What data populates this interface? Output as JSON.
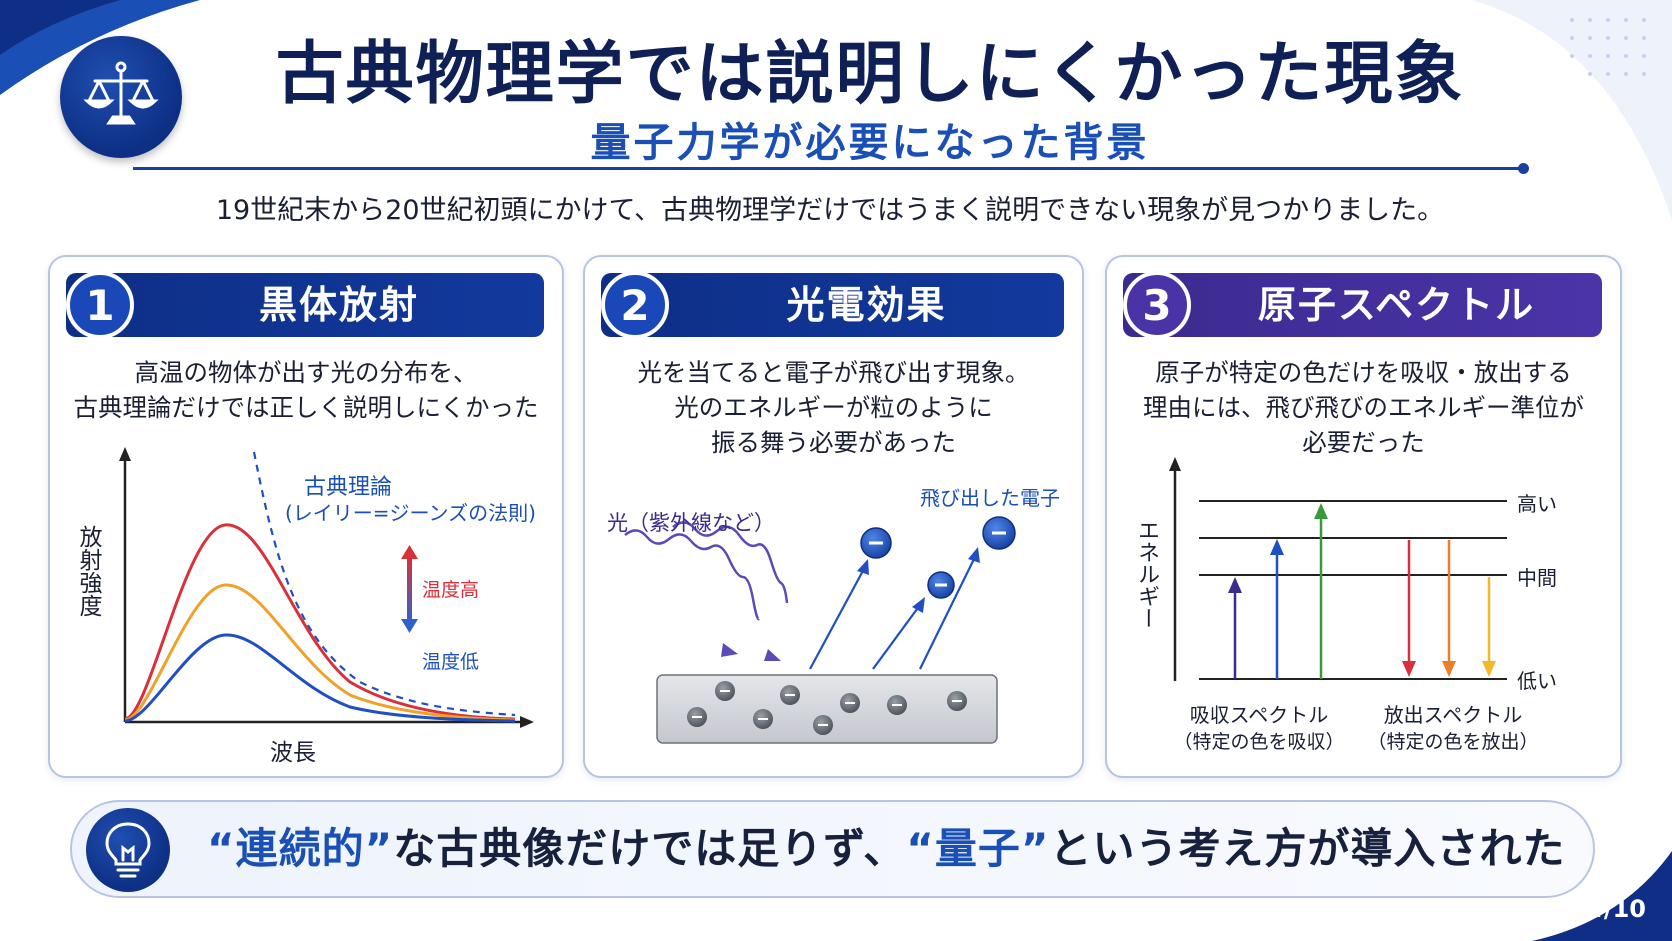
{
  "slide": {
    "title": "古典物理学では説明しにくかった現象",
    "subtitle": "量子力学が必要になった背景",
    "lead": "19世紀末から20世紀初頭にかけて、古典物理学だけではうまく説明できない現象が見つかりました。",
    "page_number": "4/10"
  },
  "icons": {
    "logo": "balance-scale-icon",
    "conclusion": "lightbulb-icon"
  },
  "colors": {
    "navy": "#0f2057",
    "accent_blue": "#1a4fb5",
    "banner_blue": "#12399e",
    "banner_purple": "#4b34a8",
    "curve_hot": "#d9303a",
    "curve_mid": "#f0a12a",
    "curve_cool": "#1f4fc2"
  },
  "cards": [
    {
      "number": "1",
      "title": "黒体放射",
      "desc_lines": [
        "高温の物体が出す光の分布を、",
        "古典理論だけでは正しく説明しにくかった"
      ],
      "figure": {
        "y_axis_label": "放射強度",
        "x_axis_label": "波長",
        "classical_label_1": "古典理論",
        "classical_label_2": "(レイリー=ジーンズの法則)",
        "temp_high": "温度高",
        "temp_low": "温度低"
      }
    },
    {
      "number": "2",
      "title": "光電効果",
      "desc_lines": [
        "光を当てると電子が飛び出す現象。",
        "光のエネルギーが粒のように",
        "振る舞う必要があった"
      ],
      "figure": {
        "light_label": "光（紫外線など）",
        "electron_label": "飛び出した電子",
        "electron_symbol": "−"
      }
    },
    {
      "number": "3",
      "title": "原子スペクトル",
      "desc_lines": [
        "原子が特定の色だけを吸収・放出する",
        "理由には、飛び飛びのエネルギー準位が",
        "必要だった"
      ],
      "figure": {
        "y_axis_label": "エネルギー",
        "level_high": "高い",
        "level_mid": "中間",
        "level_low": "低い",
        "absorption_label": "吸収スペクトル",
        "absorption_sub": "（特定の色を吸収）",
        "emission_label": "放出スペクトル",
        "emission_sub": "（特定の色を放出）"
      }
    }
  ],
  "conclusion": {
    "q1": "“連続的”",
    "mid": "な古典像だけでは足りず、",
    "q2": "“量子”",
    "end": "という考え方が導入された"
  }
}
